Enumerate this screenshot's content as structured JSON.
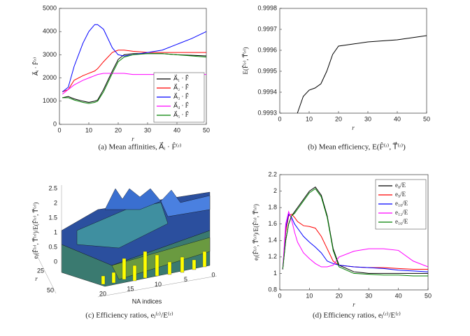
{
  "chart_data": [
    {
      "type": "line",
      "caption": "(a) Mean affinities, A⃗ᵢ · F̂⁽ʳ⁾",
      "xlabel": "r",
      "ylabel": "A⃗ᵢ · F̂⁽ʳ⁾",
      "x": [
        1,
        3,
        5,
        8,
        10,
        12,
        13,
        15,
        18,
        20,
        22,
        25,
        30,
        35,
        40,
        45,
        50
      ],
      "xlim": [
        0,
        50
      ],
      "xticks": [
        0,
        10,
        20,
        30,
        40,
        50
      ],
      "ylim": [
        0,
        5000
      ],
      "yticks": [
        0,
        1000,
        2000,
        3000,
        4000,
        5000
      ],
      "legend": "lower right",
      "series": [
        {
          "name": "A⃗₁ · F̂",
          "color": "#000000",
          "values": [
            1150,
            1200,
            1100,
            1000,
            950,
            1000,
            1050,
            1500,
            2300,
            2800,
            3000,
            3050,
            3050,
            3050,
            3000,
            2980,
            2950
          ]
        },
        {
          "name": "A⃗₂ · F̂",
          "color": "#ff0000",
          "values": [
            1400,
            1500,
            1900,
            2100,
            2200,
            2300,
            2400,
            2700,
            3100,
            3200,
            3200,
            3150,
            3100,
            3100,
            3100,
            3100,
            3100
          ]
        },
        {
          "name": "A⃗₃ · F̂",
          "color": "#0000ff",
          "values": [
            1400,
            1600,
            2500,
            3500,
            4000,
            4300,
            4300,
            4100,
            3300,
            3000,
            2950,
            3000,
            3100,
            3200,
            3450,
            3700,
            4000
          ]
        },
        {
          "name": "A⃗₄ · F̂",
          "color": "#ff00ff",
          "values": [
            1300,
            1500,
            1700,
            1900,
            2000,
            2100,
            2150,
            2200,
            2200,
            2200,
            2200,
            2150,
            2150,
            2150,
            2150,
            2150,
            2150
          ]
        },
        {
          "name": "A⃗₅ · F̂",
          "color": "#008000",
          "values": [
            1150,
            1150,
            1050,
            950,
            900,
            950,
            1000,
            1400,
            2200,
            2700,
            2900,
            3000,
            3050,
            3050,
            3000,
            2950,
            2900
          ]
        }
      ]
    },
    {
      "type": "line",
      "caption": "(b) Mean efficiency, E(F̂⁽ʳ⁾, T⃗⁽ʳ⁾)",
      "xlabel": "r",
      "ylabel": "E(F̂⁽ʳ⁾, T⃗⁽ʳ⁾)",
      "x": [
        6,
        8,
        10,
        12,
        14,
        16,
        18,
        20,
        25,
        30,
        40,
        50
      ],
      "xlim": [
        0,
        50
      ],
      "xticks": [
        0,
        10,
        20,
        30,
        40,
        50
      ],
      "ylim": [
        0.9993,
        0.9998
      ],
      "yticks": [
        0.9993,
        0.9994,
        0.9995,
        0.9996,
        0.9997,
        0.9998
      ],
      "series": [
        {
          "color": "#000000",
          "values": [
            0.9993,
            0.99938,
            0.99941,
            0.99942,
            0.99944,
            0.9995,
            0.99958,
            0.99962,
            0.99963,
            0.99964,
            0.99965,
            0.99967
          ]
        }
      ]
    },
    {
      "type": "surface3d",
      "caption": "(c) Efficiency ratios, eⱼ⁽ʳ⁾/E⁽ʳ⁾",
      "xlabel": "NA indices",
      "ylabel": "r",
      "zlabel": "eⱼ(F̂⁽ʳ⁾, T⃗⁽ʳ⁾)/E(F̂⁽ʳ⁾, T⃗⁽ʳ⁾)",
      "zlim": [
        0,
        2.5
      ],
      "zticks": [
        0,
        0.5,
        1,
        1.5,
        2,
        2.5
      ],
      "rlim": [
        0,
        50
      ],
      "rticks": [
        25,
        50
      ],
      "nlim": [
        0,
        20
      ],
      "nticks": [
        20,
        15,
        10,
        5,
        0
      ]
    },
    {
      "type": "line",
      "caption": "(d) Efficiency ratios, eⱼ⁽ʳ⁾/E⁽ʳ⁾",
      "xlabel": "r",
      "ylabel": "eⱼ(F̂⁽ʳ⁾, T⃗⁽ʳ⁾)/E(F̂⁽ʳ⁾, T⃗⁽ʳ⁾)",
      "x": [
        1,
        2,
        3,
        4,
        5,
        6,
        8,
        10,
        12,
        14,
        16,
        18,
        20,
        25,
        30,
        35,
        40,
        45,
        50
      ],
      "xlim": [
        0,
        50
      ],
      "xticks": [
        0,
        10,
        20,
        30,
        40,
        50
      ],
      "ylim": [
        0.8,
        2.2
      ],
      "yticks": [
        0.8,
        1,
        1.2,
        1.4,
        1.6,
        1.8,
        2,
        2.2
      ],
      "legend": "upper right",
      "series": [
        {
          "name": "e₈/E",
          "color": "#000000",
          "values": [
            1.05,
            1.4,
            1.6,
            1.7,
            1.75,
            1.8,
            1.9,
            2.0,
            2.05,
            1.95,
            1.7,
            1.3,
            1.1,
            1.02,
            1.0,
            1.0,
            1.0,
            1.0,
            1.0
          ]
        },
        {
          "name": "e₉/E",
          "color": "#ff0000",
          "values": [
            1.05,
            1.5,
            1.7,
            1.72,
            1.68,
            1.63,
            1.58,
            1.57,
            1.55,
            1.45,
            1.3,
            1.15,
            1.1,
            1.08,
            1.07,
            1.07,
            1.06,
            1.05,
            1.05
          ]
        },
        {
          "name": "e₁₀/E",
          "color": "#0000ff",
          "values": [
            1.05,
            1.55,
            1.72,
            1.68,
            1.6,
            1.55,
            1.45,
            1.38,
            1.32,
            1.25,
            1.15,
            1.12,
            1.1,
            1.08,
            1.07,
            1.06,
            1.04,
            1.03,
            1.02
          ]
        },
        {
          "name": "e₁₂/E",
          "color": "#ff00ff",
          "values": [
            1.05,
            1.6,
            1.75,
            1.65,
            1.5,
            1.38,
            1.25,
            1.18,
            1.12,
            1.08,
            1.08,
            1.1,
            1.2,
            1.27,
            1.3,
            1.3,
            1.28,
            1.15,
            1.08
          ]
        },
        {
          "name": "e₁₆/E",
          "color": "#008000",
          "values": [
            1.05,
            1.4,
            1.6,
            1.7,
            1.73,
            1.78,
            1.88,
            1.98,
            2.03,
            1.93,
            1.68,
            1.28,
            1.08,
            1.0,
            0.99,
            0.98,
            0.98,
            0.97,
            0.97
          ]
        }
      ]
    }
  ]
}
